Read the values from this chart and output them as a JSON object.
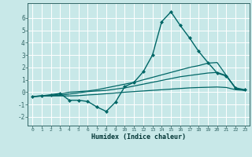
{
  "background_color": "#c8e8e8",
  "grid_color": "#ffffff",
  "line_color": "#006666",
  "xlabel": "Humidex (Indice chaleur)",
  "xlim": [
    -0.5,
    23.5
  ],
  "ylim": [
    -2.7,
    7.2
  ],
  "yticks": [
    -2,
    -1,
    0,
    1,
    2,
    3,
    4,
    5,
    6
  ],
  "xticks": [
    0,
    1,
    2,
    3,
    4,
    5,
    6,
    7,
    8,
    9,
    10,
    11,
    12,
    13,
    14,
    15,
    16,
    17,
    18,
    19,
    20,
    21,
    22,
    23
  ],
  "series": [
    {
      "x": [
        0,
        1,
        2,
        3,
        4,
        5,
        6,
        7,
        8,
        9,
        10,
        11,
        12,
        13,
        14,
        15,
        16,
        17,
        18,
        19,
        20,
        21,
        22,
        23
      ],
      "y": [
        -0.35,
        -0.3,
        -0.2,
        -0.1,
        -0.65,
        -0.65,
        -0.75,
        -1.2,
        -1.55,
        -0.8,
        0.45,
        0.8,
        1.65,
        3.0,
        5.7,
        6.5,
        5.4,
        4.4,
        3.3,
        2.4,
        1.55,
        1.3,
        0.35,
        0.2
      ],
      "marker": "D",
      "markersize": 2.0,
      "linewidth": 1.0
    },
    {
      "x": [
        0,
        1,
        2,
        3,
        4,
        5,
        6,
        7,
        8,
        9,
        10,
        11,
        12,
        13,
        14,
        15,
        16,
        17,
        18,
        19,
        20,
        21,
        22,
        23
      ],
      "y": [
        -0.35,
        -0.3,
        -0.25,
        -0.15,
        0.0,
        0.05,
        0.1,
        0.2,
        0.35,
        0.5,
        0.65,
        0.8,
        1.0,
        1.2,
        1.4,
        1.6,
        1.8,
        2.0,
        2.15,
        2.35,
        2.4,
        1.35,
        0.3,
        0.15
      ],
      "marker": null,
      "linewidth": 0.9
    },
    {
      "x": [
        0,
        1,
        2,
        3,
        4,
        5,
        6,
        7,
        8,
        9,
        10,
        11,
        12,
        13,
        14,
        15,
        16,
        17,
        18,
        19,
        20,
        21,
        22,
        23
      ],
      "y": [
        -0.35,
        -0.3,
        -0.28,
        -0.25,
        -0.15,
        -0.05,
        0.05,
        0.1,
        0.15,
        0.25,
        0.35,
        0.5,
        0.65,
        0.8,
        0.95,
        1.1,
        1.25,
        1.35,
        1.45,
        1.55,
        1.6,
        1.35,
        0.3,
        0.15
      ],
      "marker": null,
      "linewidth": 0.9
    },
    {
      "x": [
        0,
        1,
        2,
        3,
        4,
        5,
        6,
        7,
        8,
        9,
        10,
        11,
        12,
        13,
        14,
        15,
        16,
        17,
        18,
        19,
        20,
        21,
        22,
        23
      ],
      "y": [
        -0.35,
        -0.32,
        -0.3,
        -0.3,
        -0.3,
        -0.28,
        -0.22,
        -0.18,
        -0.12,
        -0.06,
        0.0,
        0.05,
        0.1,
        0.15,
        0.2,
        0.25,
        0.3,
        0.35,
        0.38,
        0.4,
        0.42,
        0.38,
        0.2,
        0.15
      ],
      "marker": null,
      "linewidth": 0.9
    }
  ]
}
